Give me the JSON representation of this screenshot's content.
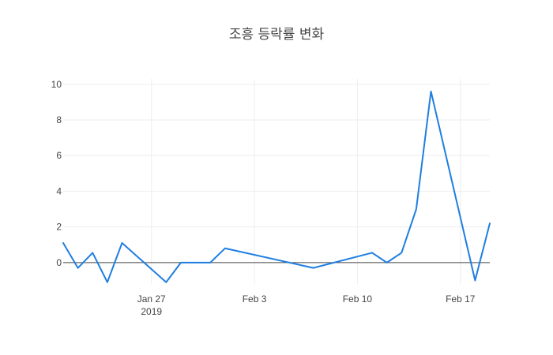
{
  "chart_data": {
    "type": "line",
    "title": "조흥 등락률 변화",
    "xlabel": "",
    "ylabel": "",
    "x_tick_labels": [
      {
        "date": "2019-01-27",
        "label": "Jan 27",
        "sublabel": "2019"
      },
      {
        "date": "2019-02-03",
        "label": "Feb 3",
        "sublabel": ""
      },
      {
        "date": "2019-02-10",
        "label": "Feb 10",
        "sublabel": ""
      },
      {
        "date": "2019-02-17",
        "label": "Feb 17",
        "sublabel": ""
      }
    ],
    "y_ticks": [
      0,
      2,
      4,
      6,
      8,
      10
    ],
    "xlim": [
      "2019-01-21",
      "2019-02-19"
    ],
    "ylim": [
      -1.2,
      10.3
    ],
    "grid": true,
    "zero_line": true,
    "series": [
      {
        "color": "#1f7ee0",
        "points": [
          {
            "x": "2019-01-21",
            "y": 1.1
          },
          {
            "x": "2019-01-22",
            "y": -0.3
          },
          {
            "x": "2019-01-23",
            "y": 0.55
          },
          {
            "x": "2019-01-24",
            "y": -1.1
          },
          {
            "x": "2019-01-25",
            "y": 1.1
          },
          {
            "x": "2019-01-28",
            "y": -1.1
          },
          {
            "x": "2019-01-29",
            "y": 0.0
          },
          {
            "x": "2019-01-30",
            "y": 0.0
          },
          {
            "x": "2019-01-31",
            "y": 0.0
          },
          {
            "x": "2019-02-01",
            "y": 0.8
          },
          {
            "x": "2019-02-07",
            "y": -0.3
          },
          {
            "x": "2019-02-11",
            "y": 0.55
          },
          {
            "x": "2019-02-12",
            "y": 0.0
          },
          {
            "x": "2019-02-13",
            "y": 0.55
          },
          {
            "x": "2019-02-14",
            "y": 3.0
          },
          {
            "x": "2019-02-15",
            "y": 9.6
          },
          {
            "x": "2019-02-18",
            "y": -1.0
          },
          {
            "x": "2019-02-19",
            "y": 2.2
          }
        ]
      }
    ]
  }
}
